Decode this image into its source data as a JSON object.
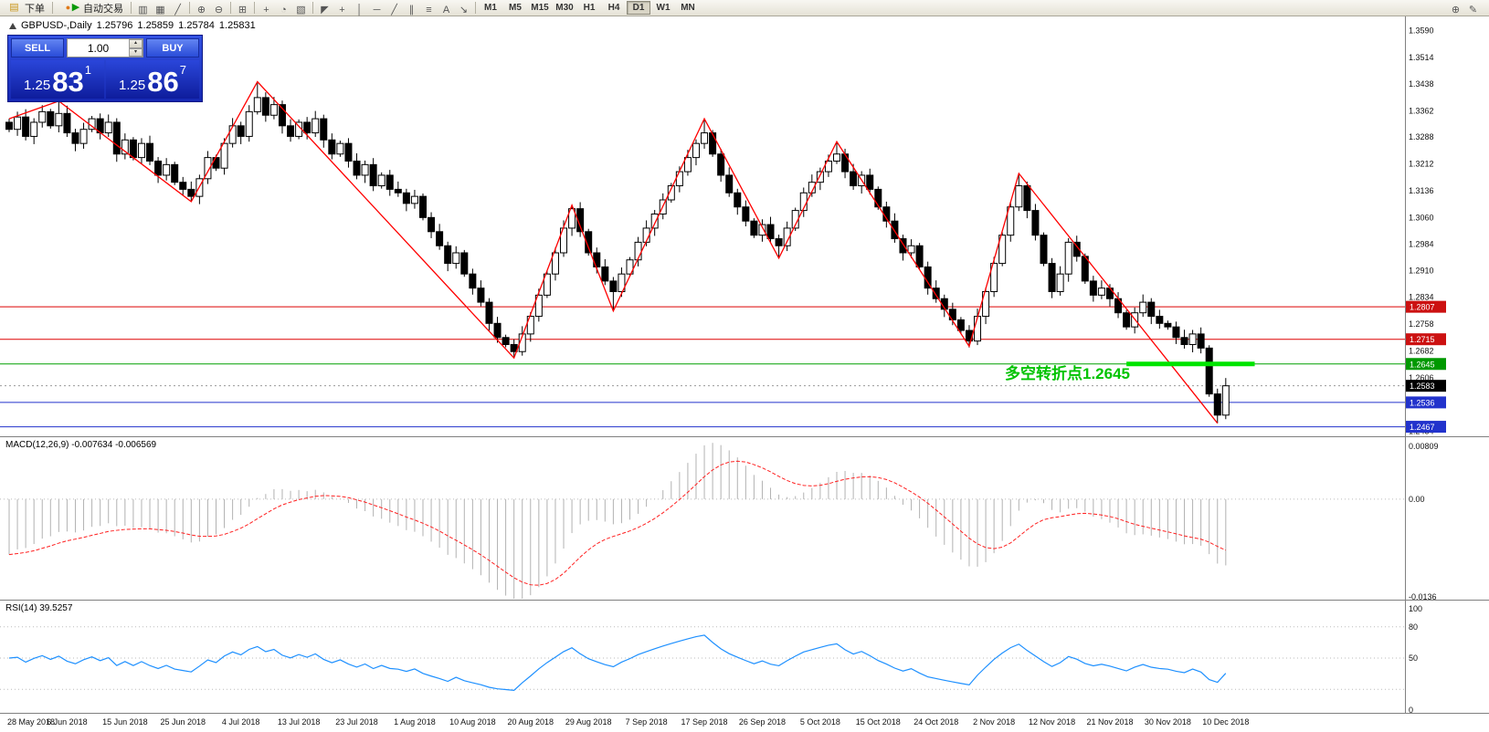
{
  "toolbar": {
    "order_button": {
      "label": "下单",
      "icon_glyph": "▤"
    },
    "autotrade_button": {
      "label": "自动交易",
      "icon_glyph": "▶",
      "badge_glyph": "●"
    },
    "tool_icons": [
      {
        "name": "bar-chart-icon",
        "glyph": "▥"
      },
      {
        "name": "candlestick-icon",
        "glyph": "▦"
      },
      {
        "name": "line-chart-icon",
        "glyph": "╱"
      },
      {
        "name": "zoom-in-icon",
        "glyph": "⊕"
      },
      {
        "name": "zoom-out-icon",
        "glyph": "⊖"
      },
      {
        "name": "tile-windows-icon",
        "glyph": "⊞"
      },
      {
        "name": "insert-indicator-icon",
        "glyph": "+"
      },
      {
        "name": "periods-icon",
        "glyph": "◔"
      },
      {
        "name": "template-icon",
        "glyph": "▧"
      },
      {
        "name": "cursor-icon",
        "glyph": "◤"
      },
      {
        "name": "crosshair-icon",
        "glyph": "+"
      },
      {
        "name": "vertical-line-icon",
        "glyph": "│"
      },
      {
        "name": "horizontal-line-icon",
        "glyph": "─"
      },
      {
        "name": "trendline-icon",
        "glyph": "╱"
      },
      {
        "name": "channel-icon",
        "glyph": "∥"
      },
      {
        "name": "fibonacci-icon",
        "glyph": "≡"
      },
      {
        "name": "text-icon",
        "glyph": "A"
      },
      {
        "name": "arrow-tool-icon",
        "glyph": "↘"
      }
    ],
    "timeframes": [
      "M1",
      "M5",
      "M15",
      "M30",
      "H1",
      "H4",
      "D1",
      "W1",
      "MN"
    ],
    "active_timeframe": "D1",
    "right_icons": [
      {
        "name": "search-icon",
        "glyph": "⊕"
      },
      {
        "name": "edit-icon",
        "glyph": "✎"
      }
    ]
  },
  "chart": {
    "title": {
      "symbol": "GBPUSD-,Daily",
      "open": "1.25796",
      "high": "1.25859",
      "low": "1.25784",
      "close": "1.25831"
    },
    "trade_panel": {
      "sell_label": "SELL",
      "buy_label": "BUY",
      "volume": "1.00",
      "bid": {
        "prefix": "1.25",
        "big": "83",
        "sup": "1"
      },
      "ask": {
        "prefix": "1.25",
        "big": "86",
        "sup": "7"
      }
    },
    "annotation": {
      "text": "多空转折点1.2645",
      "color": "#00c300"
    }
  },
  "colors": {
    "up_candle": "#ffffff",
    "down_candle": "#000000",
    "candle_stroke": "#000000",
    "zigzag": "#ff0000",
    "macd_hist": "#b2b2b2",
    "macd_signal": "#ff2020",
    "rsi_line": "#1e90ff",
    "green_zone": "#00e400",
    "axis_text": "#111111"
  },
  "chart_data": {
    "type": "candlestick",
    "symbol": "GBPUSD",
    "period": "Daily",
    "ohlc_current": {
      "open": 1.25796,
      "high": 1.25859,
      "low": 1.25784,
      "close": 1.25831
    },
    "first_open": 1.333,
    "closes": [
      1.331,
      1.3345,
      1.329,
      1.333,
      1.336,
      1.332,
      1.3355,
      1.33,
      1.327,
      1.331,
      1.334,
      1.33,
      1.333,
      1.324,
      1.328,
      1.323,
      1.327,
      1.322,
      1.318,
      1.321,
      1.316,
      1.314,
      1.312,
      1.317,
      1.323,
      1.32,
      1.327,
      1.332,
      1.329,
      1.336,
      1.34,
      1.335,
      1.338,
      1.332,
      1.329,
      1.333,
      1.33,
      1.334,
      1.328,
      1.324,
      1.327,
      1.322,
      1.318,
      1.321,
      1.315,
      1.318,
      1.314,
      1.313,
      1.31,
      1.312,
      1.306,
      1.302,
      1.298,
      1.293,
      1.296,
      1.29,
      1.286,
      1.282,
      1.276,
      1.272,
      1.27,
      1.268,
      1.273,
      1.278,
      1.284,
      1.29,
      1.296,
      1.303,
      1.3085,
      1.302,
      1.296,
      1.292,
      1.288,
      1.285,
      1.29,
      1.294,
      1.299,
      1.303,
      1.307,
      1.311,
      1.315,
      1.319,
      1.323,
      1.327,
      1.33,
      1.324,
      1.318,
      1.313,
      1.309,
      1.305,
      1.301,
      1.304,
      1.3,
      1.298,
      1.303,
      1.308,
      1.313,
      1.316,
      1.319,
      1.322,
      1.324,
      1.319,
      1.315,
      1.318,
      1.314,
      1.309,
      1.305,
      1.3,
      1.296,
      1.298,
      1.292,
      1.286,
      1.283,
      1.28,
      1.277,
      1.274,
      1.271,
      1.278,
      1.285,
      1.293,
      1.301,
      1.309,
      1.315,
      1.308,
      1.301,
      1.293,
      1.285,
      1.29,
      1.299,
      1.295,
      1.288,
      1.284,
      1.286,
      1.283,
      1.279,
      1.275,
      1.279,
      1.282,
      1.278,
      1.276,
      1.275,
      1.272,
      1.27,
      1.273,
      1.269,
      1.256,
      1.25,
      1.25831
    ],
    "dates": [
      "28 May 2018",
      "6 Jun 2018",
      "15 Jun 2018",
      "25 Jun 2018",
      "4 Jul 2018",
      "13 Jul 2018",
      "23 Jul 2018",
      "1 Aug 2018",
      "10 Aug 2018",
      "20 Aug 2018",
      "29 Aug 2018",
      "7 Sep 2018",
      "17 Sep 2018",
      "26 Sep 2018",
      "5 Oct 2018",
      "15 Oct 2018",
      "24 Oct 2018",
      "2 Nov 2018",
      "12 Nov 2018",
      "21 Nov 2018",
      "30 Nov 2018",
      "10 Dec 2018"
    ],
    "bars_per_date_label": 7,
    "ylim": [
      1.244,
      1.363
    ],
    "price_axis_ticks": [
      1.359,
      1.3514,
      1.3438,
      1.3362,
      1.3288,
      1.3212,
      1.3136,
      1.306,
      1.2984,
      1.291,
      1.2834,
      1.2758,
      1.2682,
      1.2606,
      1.253,
      1.2454
    ],
    "zigzag_pivots": [
      [
        0,
        1.334
      ],
      [
        6,
        1.339
      ],
      [
        22,
        1.3105
      ],
      [
        30,
        1.3445
      ],
      [
        61,
        1.2662
      ],
      [
        68,
        1.3095
      ],
      [
        73,
        1.2795
      ],
      [
        84,
        1.334
      ],
      [
        93,
        1.2945
      ],
      [
        100,
        1.3275
      ],
      [
        116,
        1.2695
      ],
      [
        122,
        1.3185
      ],
      [
        146,
        1.2477
      ]
    ],
    "hlines": [
      {
        "price": 1.2807,
        "label": "1.2807",
        "line": "#dd0000",
        "box": "#cc1111"
      },
      {
        "price": 1.2715,
        "label": "1.2715",
        "line": "#dd0000",
        "box": "#cc1111"
      },
      {
        "price": 1.2645,
        "label": "1.2645",
        "line": "#00a000",
        "box": "#009900"
      },
      {
        "price": 1.2536,
        "label": "1.2536",
        "line": "#2233cc",
        "box": "#2233cc"
      },
      {
        "price": 1.2467,
        "label": "1.2467",
        "line": "#2233cc",
        "box": "#2233cc"
      }
    ],
    "current_price": {
      "price": 1.25831,
      "label": "1.2583",
      "box": "#000000"
    },
    "green_zone": {
      "price": 1.2645,
      "from_bar": 135,
      "to_bar": 150.5
    },
    "macd": {
      "label": "MACD(12,26,9)",
      "current_text": "-0.007634 -0.006569",
      "fast": 12,
      "slow": 26,
      "signal": 9,
      "ylim": [
        -0.0136,
        0.00809
      ],
      "axis_labels": [
        {
          "value": 0.00809,
          "text": "0.00809"
        },
        {
          "value": 0,
          "text": "0.00"
        },
        {
          "value": -0.0136,
          "text": "-0.0136"
        }
      ]
    },
    "rsi": {
      "label": "RSI(14)",
      "current_text": "39.5257",
      "period": 14,
      "levels": [
        80,
        50,
        20
      ],
      "axis_labels": [
        {
          "value": 100,
          "text": "100"
        },
        {
          "value": 80,
          "text": "80"
        },
        {
          "value": 50,
          "text": "50"
        },
        {
          "value": 0,
          "text": "0"
        }
      ]
    }
  }
}
